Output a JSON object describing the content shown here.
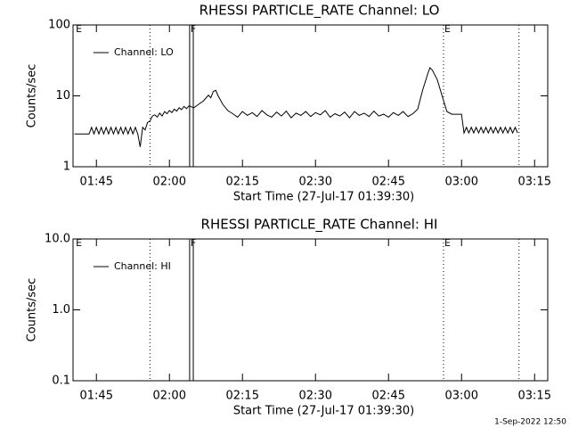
{
  "chart_data": [
    {
      "type": "line",
      "title": "RHESSI PARTICLE_RATE Channel: LO",
      "xlabel": "Start Time (27-Jul-17 01:39:30)",
      "ylabel": "Counts/sec",
      "log_y": true,
      "legend": "top-left",
      "xlim": [
        100.2,
        197.7
      ],
      "ylim": [
        1,
        100
      ],
      "xticks": [
        {
          "value": 105,
          "label": "01:45"
        },
        {
          "value": 120,
          "label": "02:00"
        },
        {
          "value": 135,
          "label": "02:15"
        },
        {
          "value": 150,
          "label": "02:30"
        },
        {
          "value": 165,
          "label": "02:45"
        },
        {
          "value": 180,
          "label": "03:00"
        },
        {
          "value": 195,
          "label": "03:15"
        }
      ],
      "yticks": [
        1,
        10,
        100
      ],
      "markers": [
        {
          "x": 100.6,
          "style": "none",
          "label": "E"
        },
        {
          "x": 116.0,
          "style": "dotted"
        },
        {
          "x": 124.15,
          "style": "solid",
          "label": "F"
        },
        {
          "x": 124.9,
          "style": "solid"
        },
        {
          "x": 176.3,
          "style": "dotted",
          "label": "E"
        },
        {
          "x": 191.8,
          "style": "dotted"
        }
      ],
      "x": [
        100.5,
        101.5,
        102.5,
        103.5,
        104,
        104.5,
        105,
        105.5,
        106,
        106.5,
        107,
        107.5,
        108,
        108.5,
        109,
        109.5,
        110,
        110.5,
        111,
        111.5,
        112,
        112.5,
        113,
        113.5,
        114,
        114.5,
        115,
        115.5,
        116,
        116.5,
        117,
        117.5,
        118,
        118.5,
        119,
        119.5,
        120,
        120.5,
        121,
        121.5,
        122,
        122.5,
        123,
        123.5,
        124,
        125,
        126,
        127,
        128,
        128.5,
        129,
        129.5,
        130,
        131,
        132,
        133,
        134,
        135,
        136,
        137,
        138,
        139,
        140,
        141,
        142,
        143,
        144,
        145,
        146,
        147,
        148,
        149,
        150,
        151,
        152,
        153,
        154,
        155,
        156,
        157,
        158,
        159,
        160,
        161,
        162,
        163,
        164,
        165,
        166,
        167,
        168,
        169,
        170,
        171,
        172,
        173,
        173.5,
        174,
        175,
        176,
        177,
        178,
        179,
        180,
        180.5,
        181,
        181.5,
        182,
        182.5,
        183,
        183.5,
        184,
        184.5,
        185,
        185.5,
        186,
        186.5,
        187,
        187.5,
        188,
        188.5,
        189,
        189.5,
        190,
        190.5,
        191,
        191.5
      ],
      "series": [
        {
          "name": "Channel: LO",
          "color": "#000000",
          "values": [
            2.9,
            2.9,
            2.9,
            2.9,
            3.6,
            2.9,
            3.6,
            2.9,
            3.6,
            2.9,
            3.6,
            2.9,
            3.6,
            2.9,
            3.6,
            2.9,
            3.6,
            2.9,
            3.6,
            2.9,
            3.6,
            2.9,
            3.6,
            2.9,
            1.9,
            3.6,
            3.3,
            4.2,
            4.4,
            5.2,
            5.4,
            5.0,
            5.7,
            5.2,
            6.0,
            5.6,
            6.2,
            5.8,
            6.5,
            6.1,
            6.8,
            6.4,
            7.1,
            6.6,
            7.2,
            6.8,
            7.6,
            8.5,
            10.2,
            9.4,
            11.5,
            12,
            10,
            7.5,
            6.2,
            5.6,
            5.0,
            6.0,
            5.3,
            5.8,
            5.1,
            6.2,
            5.4,
            5.0,
            5.9,
            5.2,
            6.1,
            4.9,
            5.7,
            5.3,
            6.0,
            5.1,
            5.8,
            5.4,
            6.2,
            5.0,
            5.6,
            5.2,
            5.9,
            4.9,
            6.0,
            5.3,
            5.7,
            5.1,
            6.1,
            5.2,
            5.5,
            5.0,
            5.8,
            5.3,
            6.0,
            5.1,
            5.6,
            6.5,
            12,
            20,
            25,
            23,
            17,
            10,
            6,
            5.5,
            5.5,
            5.5,
            3.0,
            3.6,
            3.0,
            3.6,
            3.0,
            3.6,
            3.0,
            3.6,
            3.0,
            3.6,
            3.0,
            3.6,
            3.0,
            3.6,
            3.0,
            3.6,
            3.0,
            3.6,
            3.0,
            3.6,
            3.0,
            3.6,
            3.0
          ]
        }
      ]
    },
    {
      "type": "line",
      "title": "RHESSI PARTICLE_RATE Channel: HI",
      "xlabel": "Start Time (27-Jul-17 01:39:30)",
      "ylabel": "Counts/sec",
      "log_y": true,
      "legend": "top-left",
      "xlim": [
        100.2,
        197.7
      ],
      "ylim": [
        0.1,
        10
      ],
      "xticks": [
        {
          "value": 105,
          "label": "01:45"
        },
        {
          "value": 120,
          "label": "02:00"
        },
        {
          "value": 135,
          "label": "02:15"
        },
        {
          "value": 150,
          "label": "02:30"
        },
        {
          "value": 165,
          "label": "02:45"
        },
        {
          "value": 180,
          "label": "03:00"
        },
        {
          "value": 195,
          "label": "03:15"
        }
      ],
      "yticks": [
        0.1,
        {
          "value": 1,
          "label": "1.0"
        },
        {
          "value": 10,
          "label": "10.0"
        }
      ],
      "markers": [
        {
          "x": 100.6,
          "style": "none",
          "label": "E"
        },
        {
          "x": 116.0,
          "style": "dotted"
        },
        {
          "x": 124.15,
          "style": "solid",
          "label": "F"
        },
        {
          "x": 124.9,
          "style": "solid"
        },
        {
          "x": 176.3,
          "style": "dotted",
          "label": "E"
        },
        {
          "x": 191.8,
          "style": "dotted"
        }
      ],
      "x": [],
      "series": [
        {
          "name": "Channel: HI",
          "color": "#000000",
          "values": []
        }
      ]
    }
  ],
  "footer": "1-Sep-2022 12:50"
}
